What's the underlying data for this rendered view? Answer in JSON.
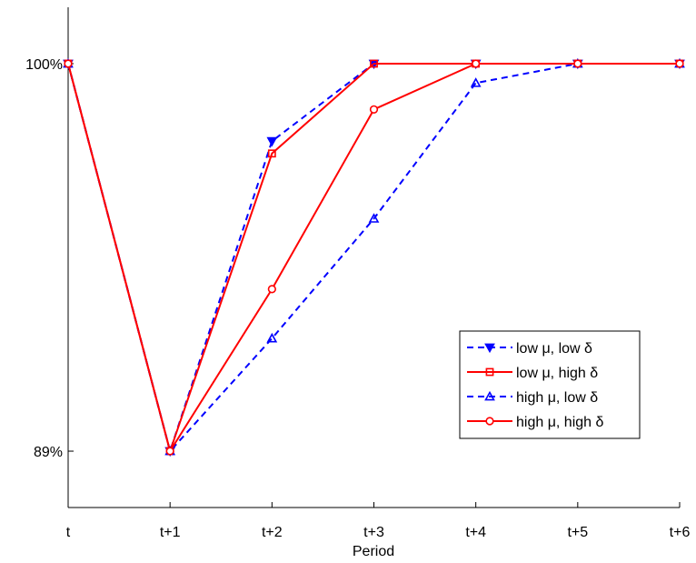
{
  "chart_data": {
    "type": "line",
    "title": "",
    "xlabel": "Period",
    "ylabel": "",
    "categories": [
      "t",
      "t+1",
      "t+2",
      "t+3",
      "t+4",
      "t+5",
      "t+6"
    ],
    "y_ticks": [
      {
        "value": 89,
        "label": "89%"
      },
      {
        "value": 100,
        "label": "100%"
      }
    ],
    "ylim": [
      87.4,
      101.6
    ],
    "grid": false,
    "legend_position": "lower-right",
    "series": [
      {
        "name": "low μ, low δ",
        "color": "#0000FF",
        "dash": "dashed",
        "marker": "triangle-down",
        "values": [
          100,
          89,
          97.8,
          100,
          100,
          100,
          100
        ]
      },
      {
        "name": "low μ, high δ",
        "color": "#FF0000",
        "dash": "solid",
        "marker": "square",
        "values": [
          100,
          89,
          97.45,
          100,
          100,
          100,
          100
        ]
      },
      {
        "name": "high μ, low δ",
        "color": "#0000FF",
        "dash": "dashed",
        "marker": "triangle-up",
        "values": [
          100,
          89,
          92.2,
          95.6,
          99.45,
          100,
          100
        ]
      },
      {
        "name": "high μ, high δ",
        "color": "#FF0000",
        "dash": "solid",
        "marker": "circle",
        "values": [
          100,
          89,
          93.6,
          98.7,
          100,
          100,
          100
        ]
      }
    ]
  }
}
